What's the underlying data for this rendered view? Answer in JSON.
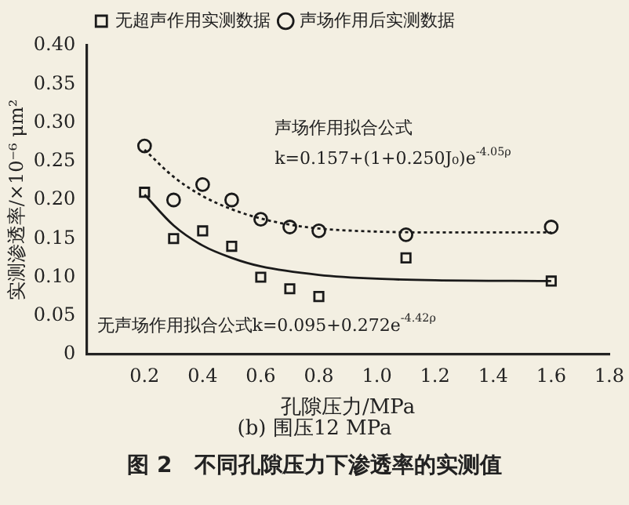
{
  "chart_data": {
    "type": "scatter",
    "title": "图 2　不同孔隙压力下渗透率的实测值",
    "subtitle": "(b) 围压12 MPa",
    "xlabel": "孔隙压力/MPa",
    "ylabel": "实测渗透率/×10⁻⁶ μm²",
    "xlim": [
      0,
      1.8
    ],
    "xticks": [
      {
        "value": 0.2,
        "label": "0.2"
      },
      {
        "value": 0.4,
        "label": "0.4"
      },
      {
        "value": 0.6,
        "label": "0.6"
      },
      {
        "value": 0.8,
        "label": "0.8"
      },
      {
        "value": 1.0,
        "label": "1.0"
      },
      {
        "value": 1.2,
        "label": "1.2"
      },
      {
        "value": 1.4,
        "label": "1.4"
      },
      {
        "value": 1.6,
        "label": "1.6"
      },
      {
        "value": 1.8,
        "label": "1.8"
      }
    ],
    "ylim": [
      0,
      0.4
    ],
    "yticks": [
      {
        "value": 0,
        "label": "0"
      },
      {
        "value": 0.05,
        "label": "0.05"
      },
      {
        "value": 0.1,
        "label": "0.10"
      },
      {
        "value": 0.15,
        "label": "0.15"
      },
      {
        "value": 0.2,
        "label": "0.20"
      },
      {
        "value": 0.25,
        "label": "0.25"
      },
      {
        "value": 0.3,
        "label": "0.30"
      },
      {
        "value": 0.35,
        "label": "0.35"
      },
      {
        "value": 0.4,
        "label": "0.40"
      }
    ],
    "grid": false,
    "legend": "top left",
    "series": [
      {
        "name": "无超声作用实测数据",
        "type": "scatter",
        "marker": "square",
        "color": "#1a1a1a",
        "x": [
          0.2,
          0.3,
          0.4,
          0.5,
          0.6,
          0.7,
          0.8,
          1.1,
          1.6
        ],
        "values": [
          0.21,
          0.15,
          0.16,
          0.14,
          0.1,
          0.085,
          0.075,
          0.125,
          0.095
        ]
      },
      {
        "name": "声场作用后实测数据",
        "type": "scatter",
        "marker": "circle",
        "color": "#1a1a1a",
        "x": [
          0.2,
          0.3,
          0.4,
          0.5,
          0.6,
          0.7,
          0.8,
          1.1,
          1.6
        ],
        "values": [
          0.27,
          0.2,
          0.22,
          0.2,
          0.175,
          0.165,
          0.16,
          0.155,
          0.165
        ]
      },
      {
        "type": "line",
        "marker": "none",
        "line_style": "solid",
        "color": "#1a1a1a",
        "x": [
          0.2,
          0.3,
          0.4,
          0.5,
          0.6,
          0.8,
          1.0,
          1.2,
          1.6
        ],
        "values": [
          0.207,
          0.167,
          0.141,
          0.125,
          0.114,
          0.103,
          0.098,
          0.096,
          0.095
        ]
      },
      {
        "type": "line",
        "marker": "none",
        "line_style": "dotted",
        "color": "#1a1a1a",
        "x": [
          0.2,
          0.3,
          0.4,
          0.5,
          0.6,
          0.7,
          0.8,
          1.0,
          1.2,
          1.6
        ],
        "values": [
          0.265,
          0.23,
          0.205,
          0.188,
          0.176,
          0.168,
          0.163,
          0.159,
          0.158,
          0.158
        ]
      }
    ],
    "annotations": [
      "声场作用拟合公式",
      "k=0.157+(1+0.250J₀)e$^{-4.05ρ}$",
      "无声场作用拟合公式k=0.095+0.272e$^{-4.42ρ}$"
    ]
  }
}
